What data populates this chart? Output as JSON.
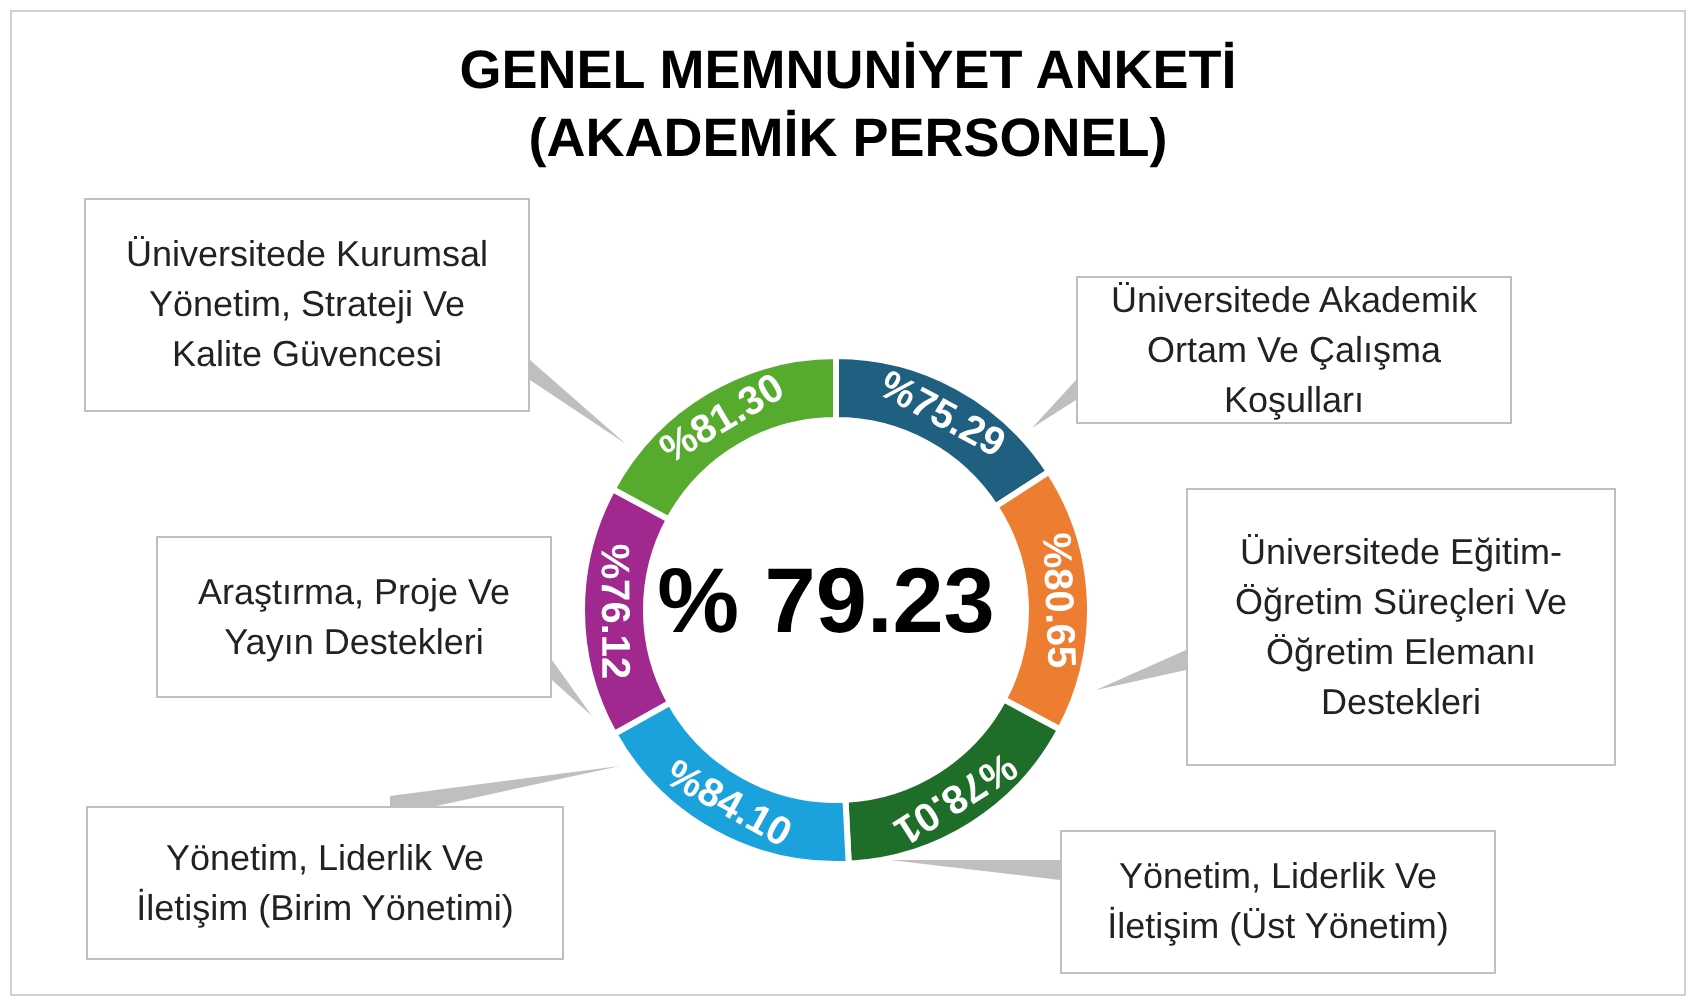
{
  "chart_data": {
    "type": "donut",
    "title": "GENEL MEMNUNİYET ANKETİ\n(AKADEMİK PERSONEL)",
    "categories": [
      "Üniversitede Akademik Ortam Ve Çalışma Koşulları",
      "Üniversitede Eğitim-Öğretim Süreçleri Ve Öğretim Elemanı Destekleri",
      "Yönetim, Liderlik Ve İletişim (Üst Yönetim)",
      "Yönetim, Liderlik Ve İletişim (Birim Yönetimi)",
      "Araştırma, Proje Ve Yayın Destekleri",
      "Üniversitede Kurumsal Yönetim, Strateji Ve Kalite Güvencesi"
    ],
    "values": [
      75.29,
      80.65,
      78.01,
      84.1,
      76.12,
      81.3
    ],
    "colors": [
      "#1f5f80",
      "#ed7d31",
      "#1e6e2a",
      "#1ba1dc",
      "#a0288f",
      "#56ab2f"
    ],
    "value_labels": [
      "%75.29",
      "%80.65",
      "%78.01",
      "%84.10",
      "%76.12",
      "%81.30"
    ],
    "annotations": [
      "% 79.23"
    ]
  }
}
